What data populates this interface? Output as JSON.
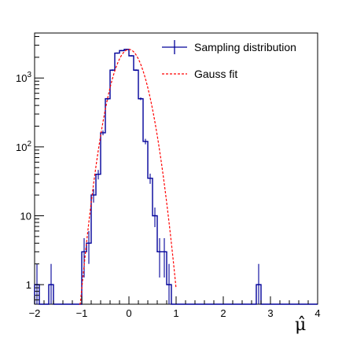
{
  "chart_data": {
    "type": "histogram",
    "title": "",
    "xlabel": "μ̂",
    "ylabel": "",
    "xlim": [
      -2,
      4
    ],
    "ylim": [
      0.52,
      4500
    ],
    "yscale": "log",
    "grid": false,
    "legend_position": "top-right",
    "x_ticks": [
      "−2",
      "−1",
      "0",
      "1",
      "2",
      "3",
      "4"
    ],
    "y_ticks": [
      "1",
      "10",
      "10²",
      "10³"
    ],
    "series": [
      {
        "name": "Sampling distribution",
        "color": "#000099",
        "style": "step-with-errorbars",
        "bin_edges": [
          -2,
          -1.9,
          -1.8,
          -1.7,
          -1.6,
          -1.5,
          -1.4,
          -1.3,
          -1.2,
          -1.1,
          -1.0,
          -0.9,
          -0.8,
          -0.7,
          -0.6,
          -0.5,
          -0.4,
          -0.3,
          -0.2,
          -0.1,
          0.0,
          0.1,
          0.2,
          0.3,
          0.4,
          0.5,
          0.6,
          0.7,
          0.8,
          0.9,
          1.0,
          1.1,
          1.2,
          1.3,
          1.4,
          1.5,
          1.6,
          1.7,
          1.8,
          1.9,
          2.0,
          2.1,
          2.2,
          2.3,
          2.4,
          2.5,
          2.6,
          2.7,
          2.8,
          2.9,
          3.0,
          3.1,
          3.2,
          3.3,
          3.4,
          3.5,
          3.6,
          3.7,
          3.8,
          3.9,
          4.0
        ],
        "counts": [
          1,
          0,
          0,
          1,
          0,
          0,
          0,
          0,
          0,
          0,
          3,
          4,
          20,
          40,
          160,
          500,
          1300,
          2300,
          2500,
          2600,
          2100,
          1300,
          500,
          120,
          35,
          10,
          3,
          3,
          1,
          0,
          0,
          0,
          0,
          0,
          0,
          0,
          0,
          0,
          0,
          0,
          0,
          0,
          0,
          0,
          0,
          0,
          0,
          1,
          0,
          0,
          0,
          0,
          0,
          0,
          0,
          0,
          0,
          0,
          0,
          0
        ]
      },
      {
        "name": "Gauss fit",
        "color": "#ff0000",
        "style": "dashed-line",
        "function": "gaussian",
        "amplitude": 2600,
        "mean": 0.0,
        "sigma": 0.25,
        "x_range": [
          -1.05,
          1.0
        ]
      }
    ]
  }
}
